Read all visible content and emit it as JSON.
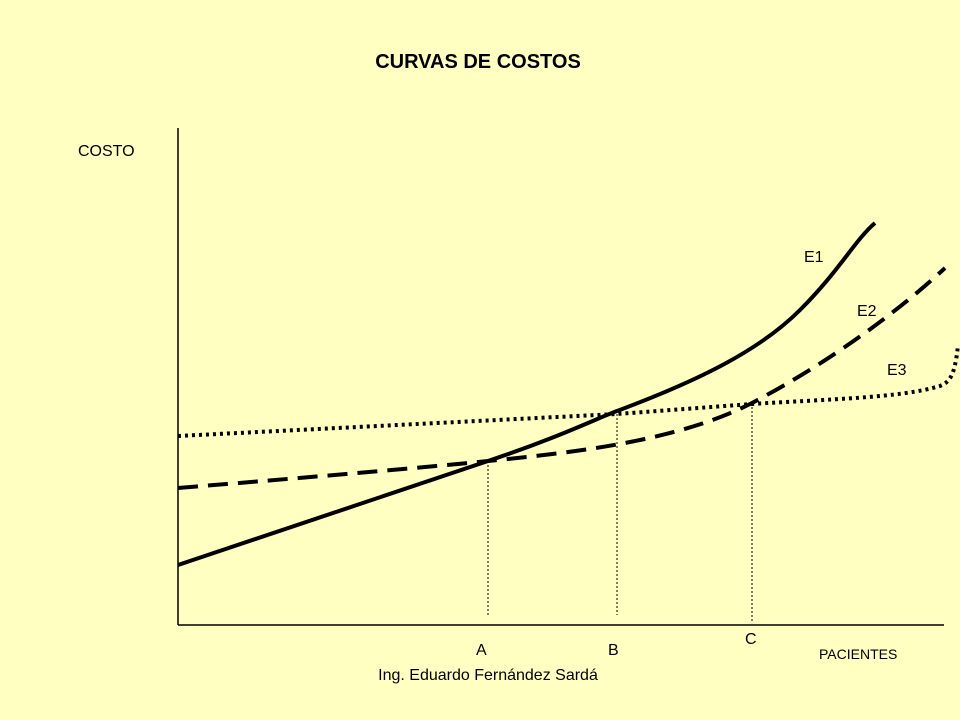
{
  "title": "CURVAS DE COSTOS",
  "author": "Ing. Eduardo Fernández Sardá",
  "axes": {
    "y_label": "COSTO",
    "x_label": "PACIENTES"
  },
  "curves": [
    {
      "label": "E1",
      "style": "solid"
    },
    {
      "label": "E2",
      "style": "dashed"
    },
    {
      "label": "E3",
      "style": "dotted"
    }
  ],
  "markers": [
    "A",
    "B",
    "C"
  ],
  "colors": {
    "background": "#FFFFC1",
    "ink": "#000000"
  }
}
